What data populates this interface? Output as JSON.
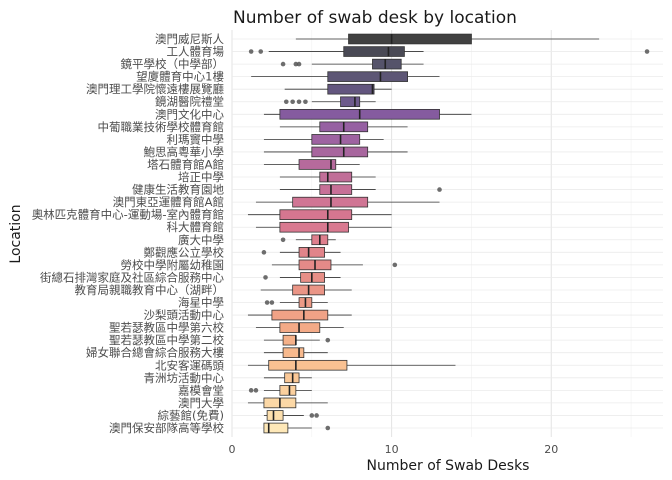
{
  "chart_data": {
    "type": "boxplot",
    "title": "Number of swab desk by location",
    "xlabel": "Number of Swab Desks",
    "ylabel": "Location",
    "xlim": [
      0,
      27
    ],
    "x_ticks": [
      0,
      10,
      20
    ],
    "grid": true,
    "legend": "none",
    "categories": [
      {
        "name": "澳門威尼斯人",
        "q1": 7.3,
        "median": 10.0,
        "q3": 15.0,
        "whisker_low": 4.0,
        "whisker_high": 23.0,
        "outliers": [],
        "color": "#414141"
      },
      {
        "name": "工人體育場",
        "q1": 7.0,
        "median": 9.8,
        "q3": 10.8,
        "whisker_low": 2.3,
        "whisker_high": 12.0,
        "outliers": [
          1.2,
          1.8,
          26.0
        ],
        "color": "#4a4a55"
      },
      {
        "name": "鏡平學校（中學部）",
        "q1": 8.8,
        "median": 9.6,
        "q3": 10.6,
        "whisker_low": 5.0,
        "whisker_high": 12.0,
        "outliers": [
          3.2,
          4.0,
          4.2
        ],
        "color": "#55536a"
      },
      {
        "name": "望廈體育中心1樓",
        "q1": 6.0,
        "median": 9.3,
        "q3": 11.0,
        "whisker_low": 1.2,
        "whisker_high": 13.0,
        "outliers": [],
        "color": "#5d5675"
      },
      {
        "name": "澳門理工學院懷遠樓展覽廳",
        "q1": 6.0,
        "median": 8.8,
        "q3": 8.9,
        "whisker_low": 3.3,
        "whisker_high": 10.0,
        "outliers": [],
        "color": "#63567f"
      },
      {
        "name": "鏡湖醫院禮堂",
        "q1": 6.8,
        "median": 7.7,
        "q3": 8.0,
        "whisker_low": 5.0,
        "whisker_high": 9.0,
        "outliers": [
          3.4,
          3.8,
          4.2,
          4.6
        ],
        "color": "#6d5a8c"
      },
      {
        "name": "澳門文化中心",
        "q1": 3.0,
        "median": 8.0,
        "q3": 13.0,
        "whisker_low": 2.0,
        "whisker_high": 15.0,
        "outliers": [],
        "color": "#855b9f"
      },
      {
        "name": "中葡職業技術學校體育館",
        "q1": 5.5,
        "median": 7.0,
        "q3": 8.5,
        "whisker_low": 3.0,
        "whisker_high": 11.0,
        "outliers": [],
        "color": "#9660a2"
      },
      {
        "name": "利瑪竇中學",
        "q1": 5.0,
        "median": 6.8,
        "q3": 8.0,
        "whisker_low": 2.0,
        "whisker_high": 9.5,
        "outliers": [],
        "color": "#9e63a1"
      },
      {
        "name": "鮑思高粵華小學",
        "q1": 5.0,
        "median": 7.0,
        "q3": 8.5,
        "whisker_low": 2.0,
        "whisker_high": 11.0,
        "outliers": [],
        "color": "#a8669e"
      },
      {
        "name": "塔石體育館A館",
        "q1": 4.2,
        "median": 6.2,
        "q3": 6.5,
        "whisker_low": 2.0,
        "whisker_high": 8.0,
        "outliers": [],
        "color": "#b66a9c"
      },
      {
        "name": "培正中學",
        "q1": 5.5,
        "median": 6.0,
        "q3": 7.5,
        "whisker_low": 3.0,
        "whisker_high": 9.0,
        "outliers": [],
        "color": "#c16e98"
      },
      {
        "name": "健康生活教育園地",
        "q1": 5.5,
        "median": 6.2,
        "q3": 7.5,
        "whisker_low": 3.0,
        "whisker_high": 9.0,
        "outliers": [
          13.0
        ],
        "color": "#c77097"
      },
      {
        "name": "澳門東亞運體育館A館",
        "q1": 3.8,
        "median": 6.2,
        "q3": 8.5,
        "whisker_low": 1.5,
        "whisker_high": 13.0,
        "outliers": [],
        "color": "#d07594"
      },
      {
        "name": "奧林匹克體育中心-運動場-室內體育館",
        "q1": 3.0,
        "median": 6.0,
        "q3": 7.5,
        "whisker_low": 1.0,
        "whisker_high": 10.0,
        "outliers": [],
        "color": "#d57690"
      },
      {
        "name": "科大體育館",
        "q1": 3.0,
        "median": 6.0,
        "q3": 7.3,
        "whisker_low": 1.5,
        "whisker_high": 10.0,
        "outliers": [],
        "color": "#d97990"
      },
      {
        "name": "廣大中學",
        "q1": 5.0,
        "median": 5.5,
        "q3": 6.0,
        "whisker_low": 4.0,
        "whisker_high": 6.5,
        "outliers": [
          3.2
        ],
        "color": "#de7f8d"
      },
      {
        "name": "鄭觀應公立學校",
        "q1": 4.2,
        "median": 4.8,
        "q3": 5.8,
        "whisker_low": 3.0,
        "whisker_high": 6.8,
        "outliers": [
          2.0
        ],
        "color": "#e1848a"
      },
      {
        "name": "勞校中學附屬幼稚園",
        "q1": 4.2,
        "median": 5.2,
        "q3": 6.2,
        "whisker_low": 2.5,
        "whisker_high": 8.2,
        "outliers": [
          10.2
        ],
        "color": "#e58a88"
      },
      {
        "name": "街總石排灣家庭及社區綜合服務中心",
        "q1": 4.3,
        "median": 5.0,
        "q3": 5.8,
        "whisker_low": 3.0,
        "whisker_high": 6.8,
        "outliers": [
          2.1
        ],
        "color": "#e78f87"
      },
      {
        "name": "教育局親職教育中心（湖畔）",
        "q1": 3.8,
        "median": 4.8,
        "q3": 5.8,
        "whisker_low": 1.8,
        "whisker_high": 7.5,
        "outliers": [],
        "color": "#ea9586"
      },
      {
        "name": "海星中學",
        "q1": 4.2,
        "median": 4.6,
        "q3": 5.0,
        "whisker_low": 3.0,
        "whisker_high": 6.0,
        "outliers": [
          2.2,
          2.5
        ],
        "color": "#ec9a86"
      },
      {
        "name": "沙梨頭活動中心",
        "q1": 2.5,
        "median": 4.5,
        "q3": 6.0,
        "whisker_low": 1.0,
        "whisker_high": 7.5,
        "outliers": [],
        "color": "#f0a286"
      },
      {
        "name": "聖若瑟教區中學第六校",
        "q1": 3.0,
        "median": 4.2,
        "q3": 5.5,
        "whisker_low": 1.5,
        "whisker_high": 7.0,
        "outliers": [],
        "color": "#f3aa87"
      },
      {
        "name": "聖若瑟教區中學第二校",
        "q1": 3.2,
        "median": 4.0,
        "q3": 4.0,
        "whisker_low": 2.0,
        "whisker_high": 5.5,
        "outliers": [
          6.0
        ],
        "color": "#f5b189"
      },
      {
        "name": "婦女聯合總會綜合服務大樓",
        "q1": 3.2,
        "median": 4.2,
        "q3": 4.5,
        "whisker_low": 2.0,
        "whisker_high": 6.0,
        "outliers": [],
        "color": "#f7b98d"
      },
      {
        "name": "北安客運碼頭",
        "q1": 2.3,
        "median": 4.0,
        "q3": 7.2,
        "whisker_low": 1.0,
        "whisker_high": 14.0,
        "outliers": [],
        "color": "#f9c192"
      },
      {
        "name": "青洲坊活動中心",
        "q1": 3.3,
        "median": 3.8,
        "q3": 4.2,
        "whisker_low": 2.0,
        "whisker_high": 5.0,
        "outliers": [],
        "color": "#fac897"
      },
      {
        "name": "嘉模會堂",
        "q1": 3.0,
        "median": 3.6,
        "q3": 4.0,
        "whisker_low": 2.0,
        "whisker_high": 5.0,
        "outliers": [
          1.2,
          1.5
        ],
        "color": "#fbd09e"
      },
      {
        "name": "澳門大學",
        "q1": 2.0,
        "median": 3.0,
        "q3": 4.0,
        "whisker_low": 1.0,
        "whisker_high": 6.0,
        "outliers": [],
        "color": "#fcd8a6"
      },
      {
        "name": "綜藝館(免費)",
        "q1": 2.2,
        "median": 2.6,
        "q3": 3.2,
        "whisker_low": 2.0,
        "whisker_high": 4.5,
        "outliers": [
          5.0,
          5.3
        ],
        "color": "#fde0ae"
      },
      {
        "name": "澳門保安部隊高等學校",
        "q1": 2.0,
        "median": 2.3,
        "q3": 3.5,
        "whisker_low": 2.0,
        "whisker_high": 5.0,
        "outliers": [
          6.0
        ],
        "color": "#fee8b8"
      }
    ]
  }
}
